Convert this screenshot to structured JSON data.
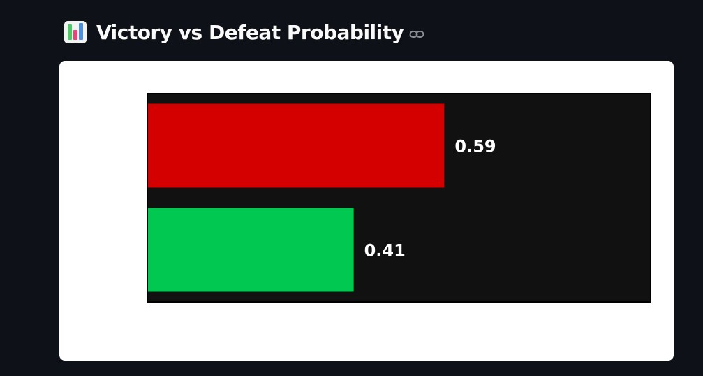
{
  "header": {
    "icon": "bar-chart-icon",
    "title": "Victory vs Defeat Probability",
    "link_icon": "link-icon"
  },
  "chart_data": {
    "type": "bar",
    "orientation": "horizontal",
    "xlim": [
      0,
      1
    ],
    "grid": false,
    "legend": false,
    "background_color": "#111111",
    "bars": [
      {
        "value": 0.59,
        "label": "0.59",
        "color": "#d40000"
      },
      {
        "value": 0.41,
        "label": "0.41",
        "color": "#00c850"
      }
    ]
  }
}
